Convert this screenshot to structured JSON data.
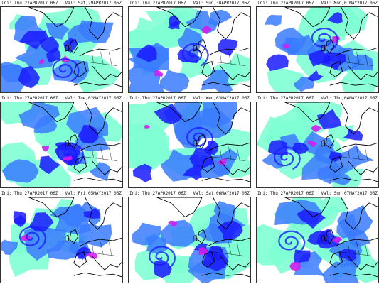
{
  "panels": [
    {
      "ini": "Ini: Thu,27APR2017 06Z",
      "valid": "Val: Sat,29APR2017 06Z"
    },
    {
      "ini": "Ini: Thu,27APR2017 06Z",
      "valid": "Val: Sun,30APR2017 06Z"
    },
    {
      "ini": "Ini: Thu,27APR2017 06Z",
      "valid": "Val: Mon,01MAY2017 06Z"
    },
    {
      "ini": "Ini: Thu,27APR2017 06Z",
      "valid": "Val: Tue,02MAY2017 06Z"
    },
    {
      "ini": "Ini: Thu,27APR2017 06Z",
      "valid": "Val: Wed,03MAY2017 06Z"
    },
    {
      "ini": "Ini: Thu,27APR2017 06Z",
      "valid": "Val: Thu,04MAY2017 06Z"
    },
    {
      "ini": "Ini: Thu,27APR2017 06Z",
      "valid": "Val: Fri,05MAY2017 06Z"
    },
    {
      "ini": "Ini: Thu,27APR2017 06Z",
      "valid": "Val: Sat,06MAY2017 06Z"
    },
    {
      "ini": "Ini: Thu,27APR2017 06Z",
      "valid": "Val: Sun,07MAY2017 06Z"
    }
  ],
  "colors": {
    "ocean": "#ffffff",
    "moisture_light": "#7fffd4",
    "moisture_mid": "#3a7bff",
    "moisture_dark": "#1a1aff",
    "moisture_peak": "#d21ef0",
    "coastline": "#000000"
  }
}
